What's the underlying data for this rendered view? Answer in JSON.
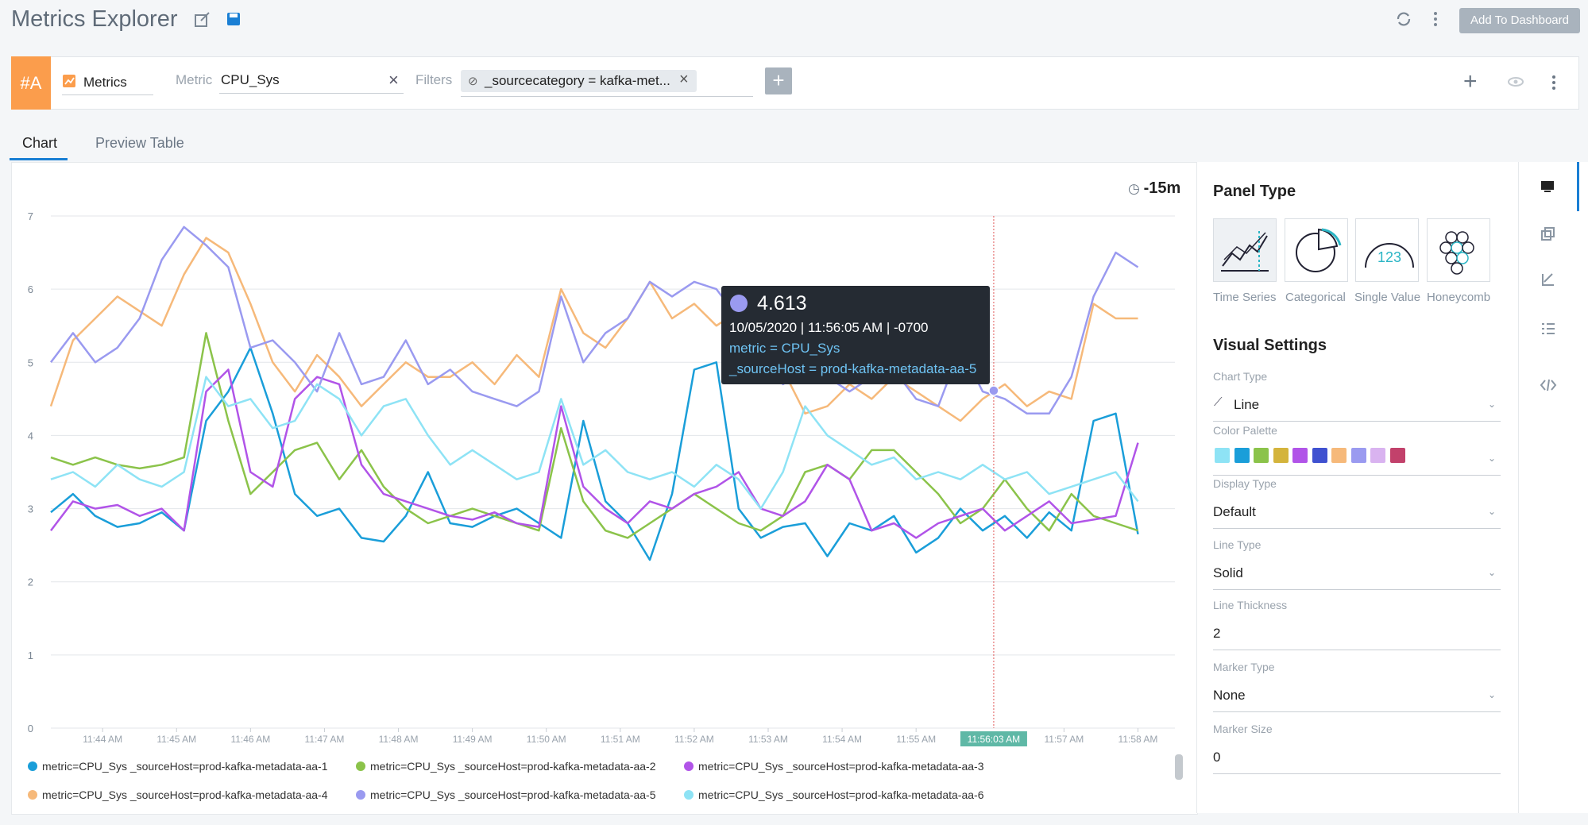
{
  "header": {
    "title": "Metrics Explorer",
    "add_button": "Add To Dashboard"
  },
  "query": {
    "row_label": "#A",
    "source": "Metrics",
    "metric_label": "Metric",
    "metric": "CPU_Sys",
    "filters_label": "Filters",
    "filter": "_sourcecategory = kafka-met..."
  },
  "tabs": [
    "Chart",
    "Preview Table"
  ],
  "panel": {
    "title": "Panel Type",
    "types": [
      "Time Series",
      "Categorical",
      "Single Value",
      "Honeycomb"
    ],
    "visual_title": "Visual Settings",
    "fields": [
      {
        "label": "Chart Type",
        "value": "Line"
      },
      {
        "label": "Color Palette"
      },
      {
        "label": "Display Type",
        "value": "Default"
      },
      {
        "label": "Line Type",
        "value": "Solid"
      },
      {
        "label": "Line Thickness",
        "value": "2"
      },
      {
        "label": "Marker Type",
        "value": "None"
      },
      {
        "label": "Marker Size",
        "value": "0"
      }
    ],
    "palette": [
      "#8ee3f5",
      "#1a9ed9",
      "#8bc34a",
      "#d4b43c",
      "#b154e8",
      "#3f51d0",
      "#f6b97a",
      "#9a9af0",
      "#d9b3f0",
      "#c2416b"
    ]
  },
  "chart_data": {
    "type": "line",
    "time_range": "-15m",
    "x": [
      703.3,
      703.6,
      703.9,
      704.2,
      704.5,
      704.8,
      705.1,
      705.4,
      705.7,
      706.0,
      706.3,
      706.6,
      706.9,
      707.2,
      707.5,
      707.8,
      708.1,
      708.4,
      708.7,
      709.0,
      709.3,
      709.6,
      709.9,
      710.2,
      710.5,
      710.8,
      711.1,
      711.4,
      711.7,
      712.0,
      712.3,
      712.6,
      712.9,
      713.2,
      713.5,
      713.8,
      714.1,
      714.4,
      714.7,
      715.0,
      715.3,
      715.6,
      715.9,
      716.2,
      716.5,
      716.8,
      717.1,
      717.4,
      717.7,
      718.0
    ],
    "xlim": [
      703.3,
      718.5
    ],
    "xticks": [
      {
        "value": 704,
        "label": "11:44 AM"
      },
      {
        "value": 705,
        "label": "11:45 AM"
      },
      {
        "value": 706,
        "label": "11:46 AM"
      },
      {
        "value": 707,
        "label": "11:47 AM"
      },
      {
        "value": 708,
        "label": "11:48 AM"
      },
      {
        "value": 709,
        "label": "11:49 AM"
      },
      {
        "value": 710,
        "label": "11:50 AM"
      },
      {
        "value": 711,
        "label": "11:51 AM"
      },
      {
        "value": 712,
        "label": "11:52 AM"
      },
      {
        "value": 713,
        "label": "11:53 AM"
      },
      {
        "value": 714,
        "label": "11:54 AM"
      },
      {
        "value": 715,
        "label": "11:55 AM"
      },
      {
        "value": 717,
        "label": "11:57 AM"
      },
      {
        "value": 718,
        "label": "11:58 AM"
      }
    ],
    "ylim": [
      0,
      7
    ],
    "yticks": [
      0,
      1,
      2,
      3,
      4,
      5,
      6,
      7
    ],
    "grid": true,
    "cursor": {
      "x": 716.05,
      "label": "11:56:03 AM"
    },
    "tooltip": {
      "value": 4.613,
      "x": 716.05,
      "datetime": "10/05/2020 | 11:56:05 AM | -0700",
      "metric": "metric = CPU_Sys",
      "source_host": "_sourceHost = prod-kafka-metadata-aa-5",
      "series": 4
    },
    "series": [
      {
        "name": "metric=CPU_Sys _sourceHost=prod-kafka-metadata-aa-1",
        "color": "#1a9ed9",
        "values": [
          2.95,
          3.2,
          2.9,
          2.75,
          2.8,
          2.95,
          2.7,
          4.2,
          4.6,
          5.2,
          4.3,
          3.2,
          2.9,
          3.0,
          2.6,
          2.55,
          2.9,
          3.5,
          2.8,
          2.75,
          2.9,
          3.0,
          2.8,
          2.6,
          4.2,
          3.1,
          2.8,
          2.3,
          3.2,
          4.9,
          5.0,
          3.0,
          2.6,
          2.75,
          2.8,
          2.35,
          2.8,
          2.7,
          2.9,
          2.4,
          2.6,
          3.0,
          2.7,
          2.9,
          2.6,
          2.95,
          2.7,
          4.2,
          4.3,
          2.65
        ]
      },
      {
        "name": "metric=CPU_Sys _sourceHost=prod-kafka-metadata-aa-2",
        "color": "#8bc34a",
        "values": [
          3.7,
          3.6,
          3.7,
          3.6,
          3.55,
          3.6,
          3.7,
          5.4,
          4.2,
          3.2,
          3.5,
          3.8,
          3.9,
          3.4,
          3.8,
          3.3,
          3.0,
          2.8,
          2.9,
          3.0,
          2.9,
          2.8,
          2.7,
          4.1,
          3.1,
          2.7,
          2.6,
          2.8,
          3.0,
          3.2,
          3.0,
          2.8,
          2.7,
          2.9,
          3.5,
          3.6,
          3.4,
          3.8,
          3.8,
          3.5,
          3.2,
          2.8,
          3.0,
          3.4,
          3.0,
          2.7,
          3.2,
          2.9,
          2.8,
          2.7
        ]
      },
      {
        "name": "metric=CPU_Sys _sourceHost=prod-kafka-metadata-aa-3",
        "color": "#b154e8",
        "values": [
          2.7,
          3.1,
          3.0,
          3.05,
          2.9,
          3.0,
          2.7,
          4.6,
          4.9,
          3.5,
          3.3,
          4.5,
          4.8,
          4.7,
          3.6,
          3.2,
          3.1,
          3.0,
          2.9,
          2.85,
          2.95,
          2.8,
          2.75,
          4.4,
          3.3,
          3.0,
          2.8,
          3.1,
          3.0,
          3.2,
          3.3,
          3.5,
          3.0,
          2.9,
          3.1,
          3.6,
          3.4,
          2.7,
          2.8,
          2.6,
          2.8,
          2.9,
          3.0,
          2.7,
          2.9,
          3.1,
          2.8,
          2.85,
          2.9,
          3.9
        ]
      },
      {
        "name": "metric=CPU_Sys _sourceHost=prod-kafka-metadata-aa-4",
        "color": "#f6b97a",
        "values": [
          4.4,
          5.3,
          5.6,
          5.9,
          5.7,
          5.5,
          6.2,
          6.7,
          6.5,
          5.8,
          5.0,
          4.6,
          5.1,
          4.8,
          4.4,
          4.7,
          5.0,
          4.8,
          4.8,
          5.0,
          4.7,
          5.1,
          4.8,
          6.0,
          5.4,
          5.2,
          5.6,
          6.1,
          5.6,
          5.8,
          5.5,
          5.7,
          5.3,
          4.9,
          4.3,
          4.4,
          4.7,
          4.5,
          4.8,
          4.6,
          4.4,
          4.2,
          4.5,
          4.7,
          4.4,
          4.6,
          4.5,
          5.8,
          5.6,
          5.6
        ]
      },
      {
        "name": "metric=CPU_Sys _sourceHost=prod-kafka-metadata-aa-5",
        "color": "#9a9af0",
        "values": [
          5.0,
          5.4,
          5.0,
          5.2,
          5.6,
          6.4,
          6.85,
          6.6,
          6.3,
          5.2,
          5.3,
          5.0,
          4.6,
          5.4,
          4.7,
          4.8,
          5.3,
          4.7,
          4.9,
          4.6,
          4.5,
          4.4,
          4.6,
          5.9,
          5.0,
          5.4,
          5.6,
          6.1,
          5.9,
          6.1,
          6.0,
          5.6,
          5.0,
          4.7,
          4.9,
          4.8,
          4.6,
          4.8,
          4.9,
          4.5,
          4.4,
          5.2,
          4.6,
          4.5,
          4.3,
          4.3,
          4.8,
          5.9,
          6.5,
          6.3
        ]
      },
      {
        "name": "metric=CPU_Sys _sourceHost=prod-kafka-metadata-aa-6",
        "color": "#8ee3f5",
        "values": [
          3.4,
          3.5,
          3.3,
          3.6,
          3.4,
          3.3,
          3.5,
          4.8,
          4.4,
          4.5,
          4.1,
          4.2,
          4.7,
          4.5,
          4.0,
          4.4,
          4.5,
          4.0,
          3.6,
          3.8,
          3.6,
          3.4,
          3.5,
          4.5,
          3.6,
          3.8,
          3.5,
          3.4,
          3.5,
          3.3,
          3.6,
          3.4,
          3.0,
          3.5,
          4.4,
          4.0,
          3.8,
          3.6,
          3.7,
          3.4,
          3.5,
          3.4,
          3.6,
          3.4,
          3.5,
          3.2,
          3.3,
          3.4,
          3.5,
          3.1
        ]
      }
    ]
  }
}
